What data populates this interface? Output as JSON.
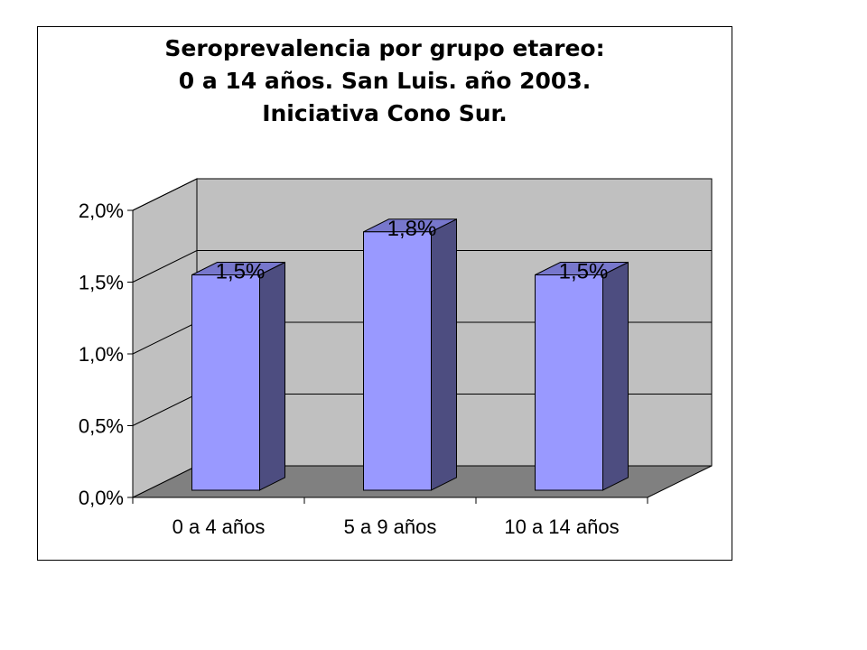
{
  "chart_data": {
    "type": "bar",
    "title_lines": [
      "Seroprevalencia por grupo etareo:",
      "0 a 14 años. San Luis. año 2003.",
      "Iniciativa Cono Sur."
    ],
    "categories": [
      "0 a 4 años",
      "5 a 9 años",
      "10 a 14 años"
    ],
    "values": [
      1.5,
      1.8,
      1.5
    ],
    "data_labels": [
      "1,5%",
      "1,8%",
      "1,5%"
    ],
    "y_ticks": [
      0,
      0.5,
      1.0,
      1.5,
      2.0
    ],
    "y_tick_labels": [
      "0,0%",
      "0,5%",
      "1,0%",
      "1,5%",
      "2,0%"
    ],
    "ylim": [
      0,
      2.0
    ],
    "xlabel": "",
    "ylabel": "",
    "grid": true,
    "legend": "none",
    "style": "3d-column",
    "colors": {
      "bar_front": "#9999ff",
      "bar_side": "#4d4d80",
      "bar_top": "#7777cc",
      "wall": "#c0c0c0",
      "floor": "#808080",
      "gridline": "#000000"
    }
  }
}
